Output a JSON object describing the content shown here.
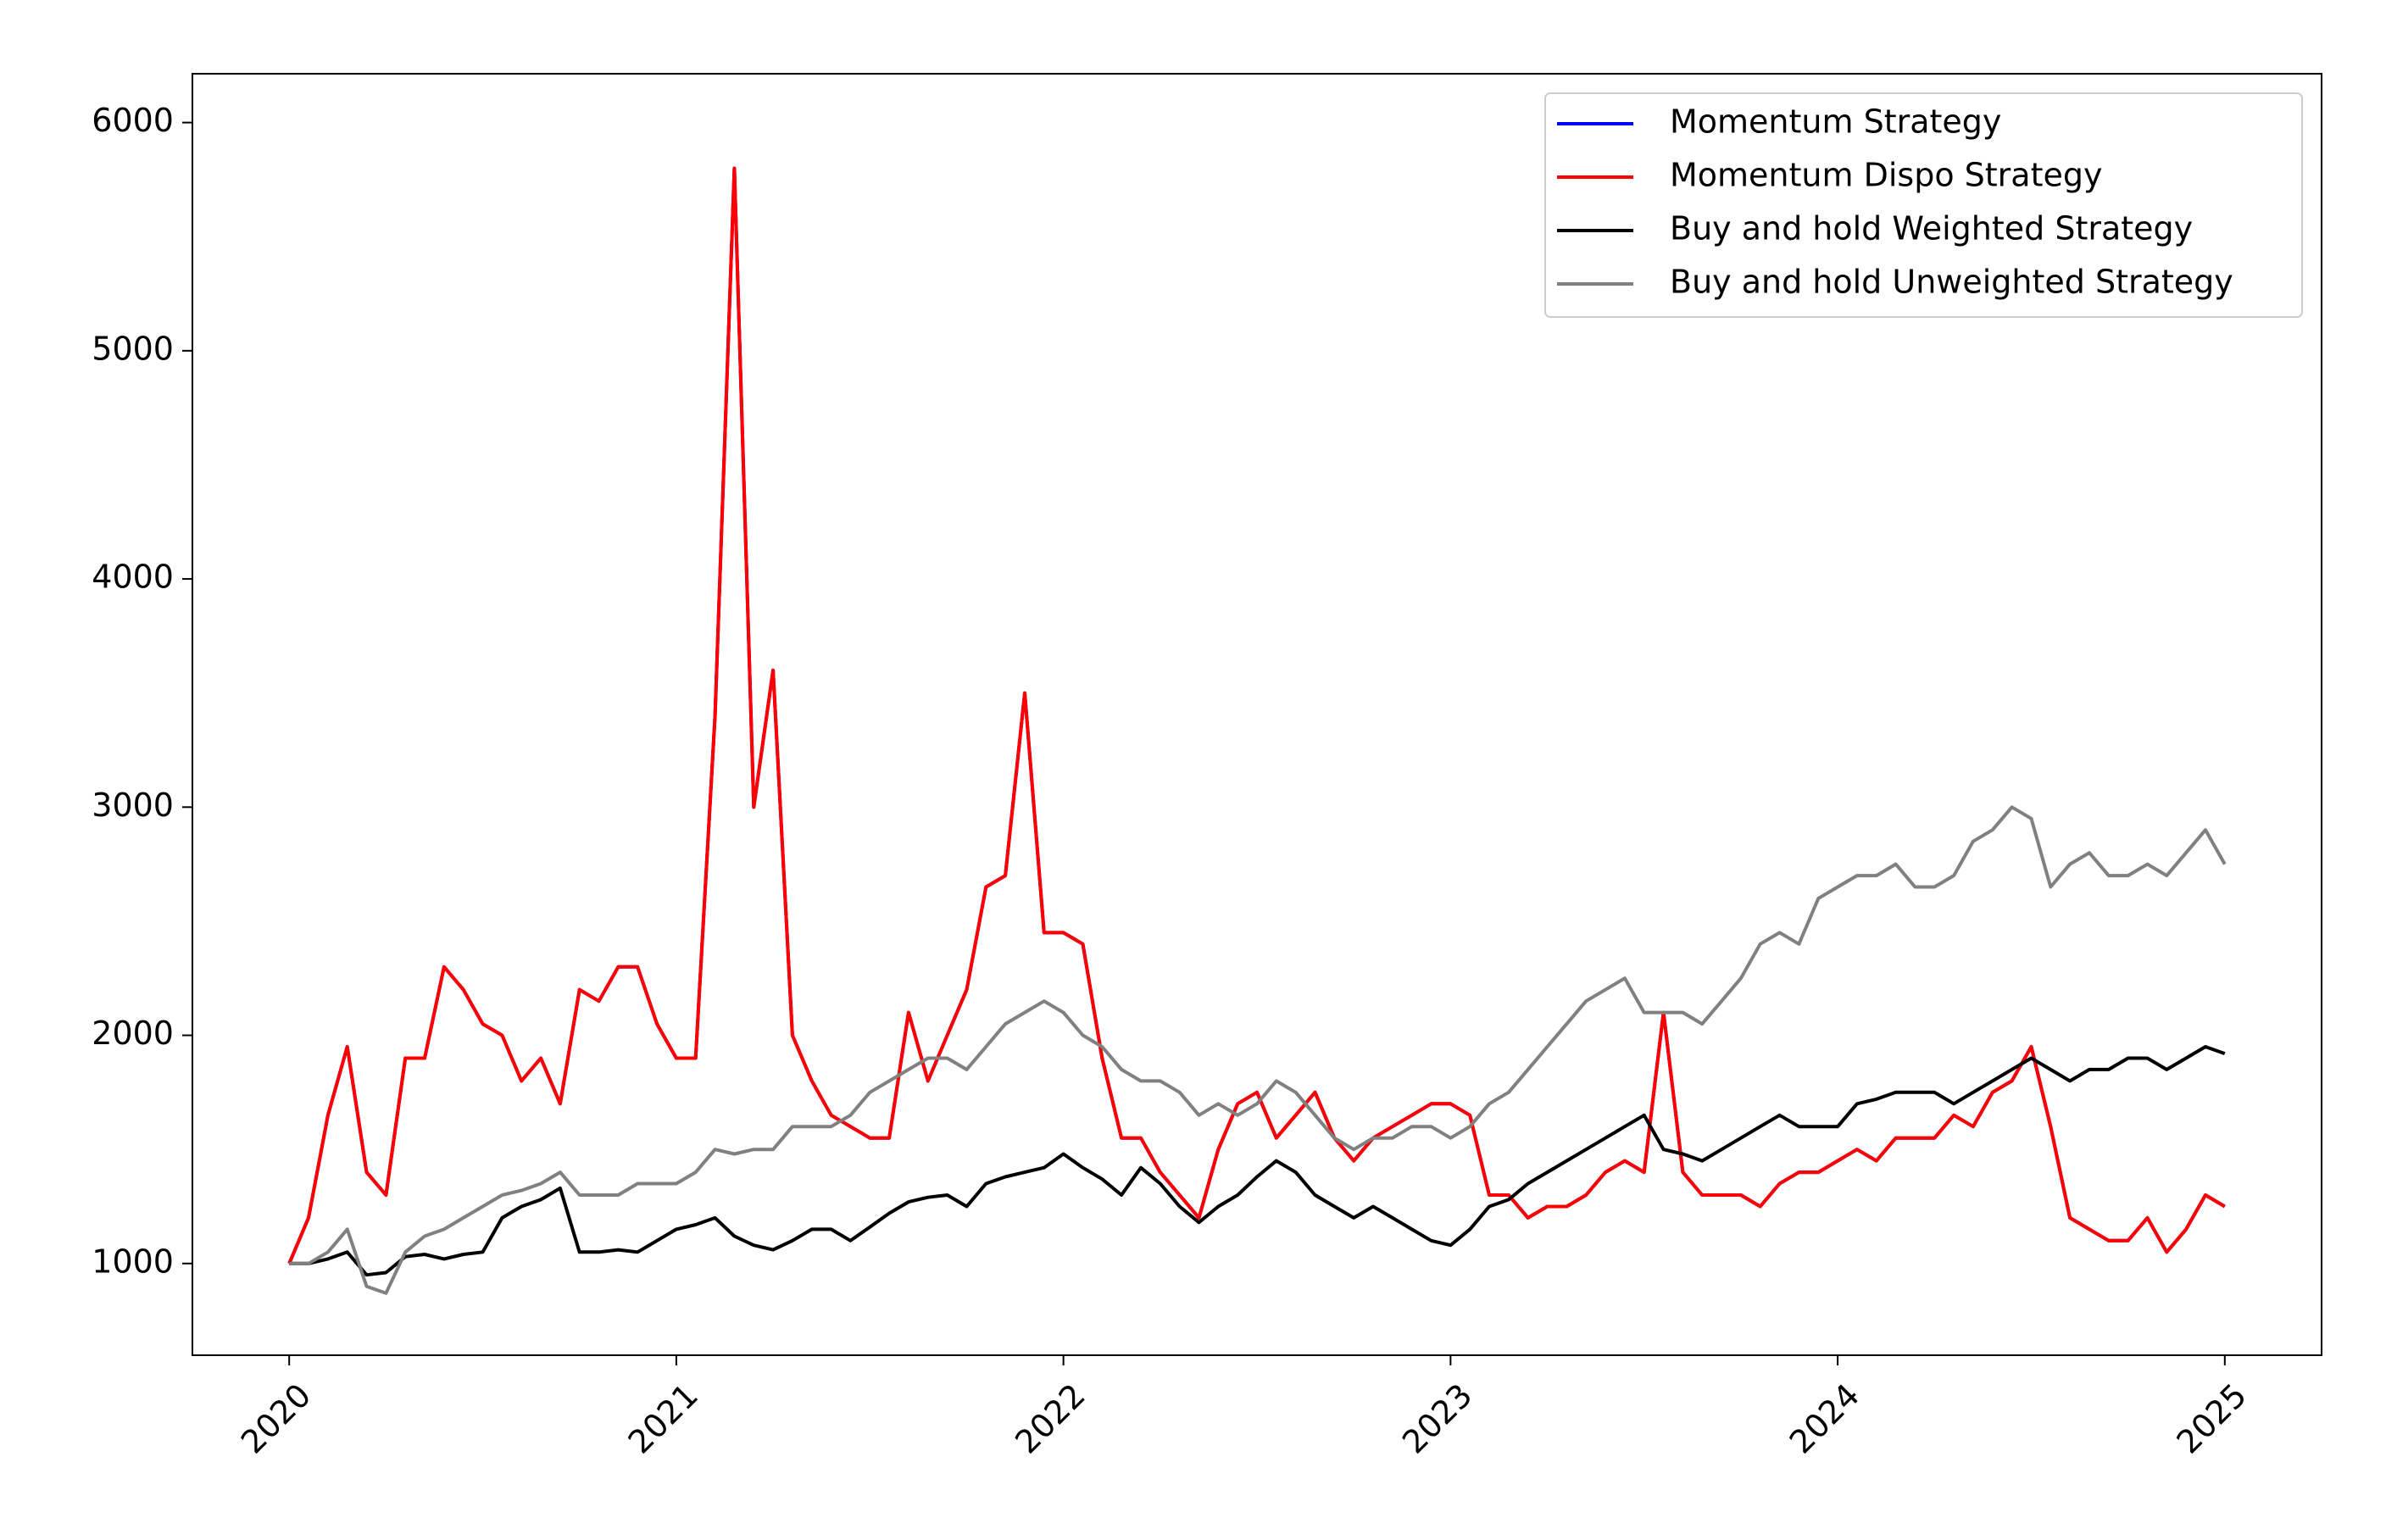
{
  "chart_data": {
    "type": "line",
    "x": [
      2020,
      2020.05,
      2020.1,
      2020.15,
      2020.2,
      2020.25,
      2020.3,
      2020.35,
      2020.4,
      2020.45,
      2020.5,
      2020.55,
      2020.6,
      2020.65,
      2020.7,
      2020.75,
      2020.8,
      2020.85,
      2020.9,
      2020.95,
      2021,
      2021.05,
      2021.1,
      2021.15,
      2021.2,
      2021.25,
      2021.3,
      2021.35,
      2021.4,
      2021.45,
      2021.5,
      2021.55,
      2021.6,
      2021.65,
      2021.7,
      2021.75,
      2021.8,
      2021.85,
      2021.9,
      2021.95,
      2022,
      2022.05,
      2022.1,
      2022.15,
      2022.2,
      2022.25,
      2022.3,
      2022.35,
      2022.4,
      2022.45,
      2022.5,
      2022.55,
      2022.6,
      2022.65,
      2022.7,
      2022.75,
      2022.8,
      2022.85,
      2022.9,
      2022.95,
      2023,
      2023.05,
      2023.1,
      2023.15,
      2023.2,
      2023.25,
      2023.3,
      2023.35,
      2023.4,
      2023.45,
      2023.5,
      2023.55,
      2023.6,
      2023.65,
      2023.7,
      2023.75,
      2023.8,
      2023.85,
      2023.9,
      2023.95,
      2024,
      2024.05,
      2024.1,
      2024.15,
      2024.2,
      2024.25,
      2024.3,
      2024.35,
      2024.4,
      2024.45,
      2024.5,
      2024.55,
      2024.6,
      2024.65,
      2024.7,
      2024.75,
      2024.8,
      2024.85,
      2024.9,
      2024.95,
      2025
    ],
    "series": [
      {
        "name": "Momentum Strategy",
        "color": "#0000ff",
        "values": [
          1000,
          1200,
          1650,
          1950,
          1400,
          1300,
          1900,
          1900,
          2300,
          2200,
          2050,
          2000,
          1800,
          1900,
          1700,
          2200,
          2150,
          2300,
          2300,
          2050,
          1900,
          1900,
          3400,
          5800,
          3000,
          3600,
          2000,
          1800,
          1650,
          1600,
          1550,
          1550,
          2100,
          1800,
          2000,
          2200,
          2650,
          2700,
          3500,
          2450,
          2450,
          2400,
          1900,
          1550,
          1550,
          1400,
          1300,
          1200,
          1500,
          1700,
          1750,
          1550,
          1650,
          1750,
          1550,
          1450,
          1550,
          1600,
          1650,
          1700,
          1700,
          1650,
          1300,
          1300,
          1200,
          1250,
          1250,
          1300,
          1400,
          1450,
          1400,
          2100,
          1400,
          1300,
          1300,
          1300,
          1250,
          1350,
          1400,
          1400,
          1450,
          1500,
          1450,
          1550,
          1550,
          1550,
          1650,
          1600,
          1750,
          1800,
          1950,
          1600,
          1200,
          1150,
          1100,
          1100,
          1200,
          1050,
          1150,
          1300,
          1250
        ]
      },
      {
        "name": "Momentum Dispo Strategy",
        "color": "#ff0000",
        "values": [
          1000,
          1200,
          1650,
          1950,
          1400,
          1300,
          1900,
          1900,
          2300,
          2200,
          2050,
          2000,
          1800,
          1900,
          1700,
          2200,
          2150,
          2300,
          2300,
          2050,
          1900,
          1900,
          3400,
          5800,
          3000,
          3600,
          2000,
          1800,
          1650,
          1600,
          1550,
          1550,
          2100,
          1800,
          2000,
          2200,
          2650,
          2700,
          3500,
          2450,
          2450,
          2400,
          1900,
          1550,
          1550,
          1400,
          1300,
          1200,
          1500,
          1700,
          1750,
          1550,
          1650,
          1750,
          1550,
          1450,
          1550,
          1600,
          1650,
          1700,
          1700,
          1650,
          1300,
          1300,
          1200,
          1250,
          1250,
          1300,
          1400,
          1450,
          1400,
          2100,
          1400,
          1300,
          1300,
          1300,
          1250,
          1350,
          1400,
          1400,
          1450,
          1500,
          1450,
          1550,
          1550,
          1550,
          1650,
          1600,
          1750,
          1800,
          1950,
          1600,
          1200,
          1150,
          1100,
          1100,
          1200,
          1050,
          1150,
          1300,
          1250
        ]
      },
      {
        "name": "Buy and hold Weighted Strategy",
        "color": "#000000",
        "values": [
          1000,
          1000,
          1020,
          1050,
          950,
          960,
          1030,
          1040,
          1020,
          1040,
          1050,
          1200,
          1250,
          1280,
          1330,
          1050,
          1050,
          1060,
          1050,
          1100,
          1150,
          1170,
          1200,
          1120,
          1080,
          1060,
          1100,
          1150,
          1150,
          1100,
          1160,
          1220,
          1270,
          1290,
          1300,
          1250,
          1350,
          1380,
          1400,
          1420,
          1480,
          1420,
          1370,
          1300,
          1420,
          1350,
          1250,
          1180,
          1250,
          1300,
          1380,
          1450,
          1400,
          1300,
          1250,
          1200,
          1250,
          1200,
          1150,
          1100,
          1080,
          1150,
          1250,
          1280,
          1350,
          1400,
          1450,
          1500,
          1550,
          1600,
          1650,
          1500,
          1480,
          1450,
          1500,
          1550,
          1600,
          1650,
          1600,
          1600,
          1600,
          1700,
          1720,
          1750,
          1750,
          1750,
          1700,
          1750,
          1800,
          1850,
          1900,
          1850,
          1800,
          1850,
          1850,
          1900,
          1900,
          1850,
          1900,
          1950,
          1920
        ]
      },
      {
        "name": "Buy and hold Unweighted Strategy",
        "color": "#808080",
        "values": [
          1000,
          1000,
          1050,
          1150,
          900,
          870,
          1050,
          1120,
          1150,
          1200,
          1250,
          1300,
          1320,
          1350,
          1400,
          1300,
          1300,
          1300,
          1350,
          1350,
          1350,
          1400,
          1500,
          1480,
          1500,
          1500,
          1600,
          1600,
          1600,
          1650,
          1750,
          1800,
          1850,
          1900,
          1900,
          1850,
          1950,
          2050,
          2100,
          2150,
          2100,
          2000,
          1950,
          1850,
          1800,
          1800,
          1750,
          1650,
          1700,
          1650,
          1700,
          1800,
          1750,
          1650,
          1550,
          1500,
          1550,
          1550,
          1600,
          1600,
          1550,
          1600,
          1700,
          1750,
          1850,
          1950,
          2050,
          2150,
          2200,
          2250,
          2100,
          2100,
          2100,
          2050,
          2150,
          2250,
          2400,
          2450,
          2400,
          2600,
          2650,
          2700,
          2700,
          2750,
          2650,
          2650,
          2700,
          2850,
          2900,
          3000,
          2950,
          2650,
          2750,
          2800,
          2700,
          2700,
          2750,
          2700,
          2800,
          2900,
          2750
        ]
      }
    ],
    "xlim": [
      2019.75,
      2025.25
    ],
    "xticks": [
      2020,
      2021,
      2022,
      2023,
      2024,
      2025
    ],
    "ylim": [
      598,
      6214
    ],
    "yticks": [
      1000,
      2000,
      3000,
      4000,
      5000,
      6000
    ],
    "legend": "upper right"
  }
}
